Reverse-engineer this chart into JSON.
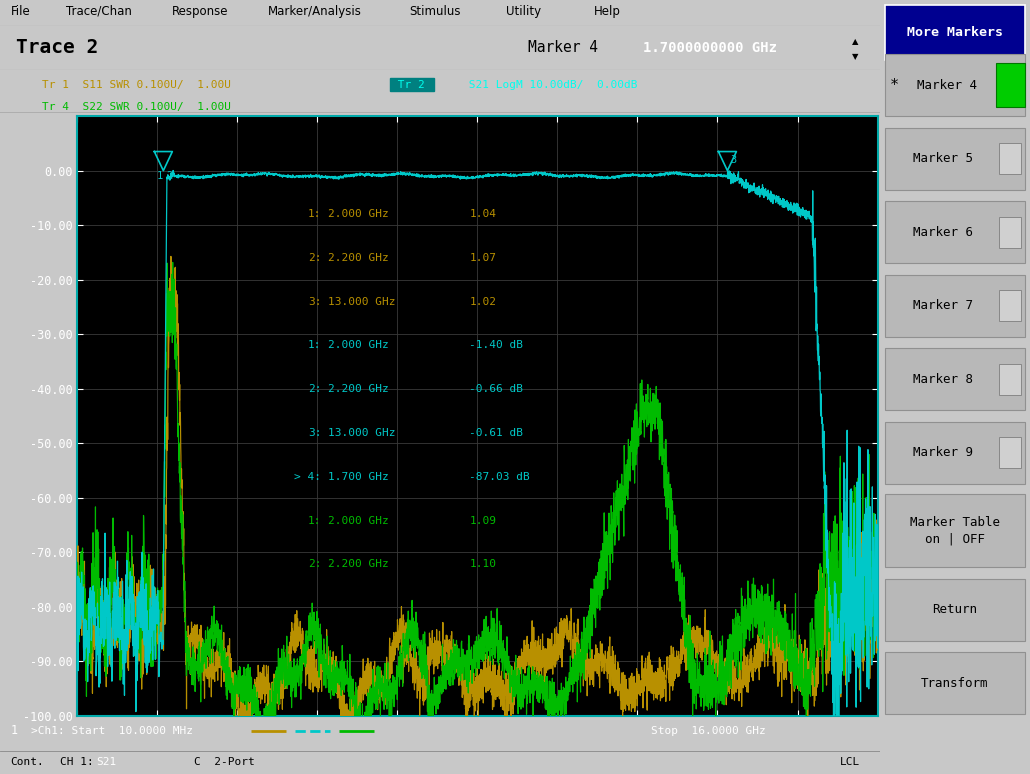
{
  "title_left": "Trace 2",
  "title_right": "Marker 4",
  "marker4_freq": "1.7000000000 GHz",
  "tr1_label": "Tr 1  S11 SWR 0.100U/  1.00U",
  "tr2_label": "Tr 2",
  "tr2_label2": " S21 LogM 10.00dB/  0.00dB",
  "tr4_label": "Tr 4  S22 SWR 0.100U/  1.00U",
  "xmin": 0.01,
  "xmax": 16.0,
  "ymin": -100.0,
  "ymax": 10.0,
  "ytick_vals": [
    0.0,
    -10.0,
    -20.0,
    -30.0,
    -40.0,
    -50.0,
    -60.0,
    -70.0,
    -80.0,
    -90.0,
    -100.0
  ],
  "ytick_labels": [
    "0.00",
    "-10.00",
    "-20.00",
    "-30.00",
    "-40.00",
    "-50.00",
    "-60.00",
    "-70.00",
    "-80.00",
    "-90.00",
    "-100.00"
  ],
  "color_s21": "#00c8c8",
  "color_s11": "#b89000",
  "color_s22": "#00bb00",
  "color_bg": "#c8c8c8",
  "color_plot_bg": "#000000",
  "color_grid": "#3a3a3a",
  "color_spine": "#00aaaa",
  "marker4_line_color": "#00cccc",
  "side_header_bg": "#000090",
  "side_btn_bg": "#b8b8b8",
  "side_cb_bg": "#d0d0d0",
  "marker_green_bg": "#00cc00",
  "ch_label_bg": "#0055cc",
  "start_label": ">Ch1: Start  10.0000 MHz",
  "stop_label": "Stop  16.0000 GHz",
  "bottom_label": "1",
  "cont_label": "Cont.",
  "ch_label": "CH 1:",
  "ch_val": "S21",
  "port_label": "C  2-Port",
  "lcl_label": "LCL",
  "menubar": [
    "File",
    "Trace/Chan",
    "Response",
    "Marker/Analysis",
    "Stimulus",
    "Utility",
    "Help"
  ]
}
